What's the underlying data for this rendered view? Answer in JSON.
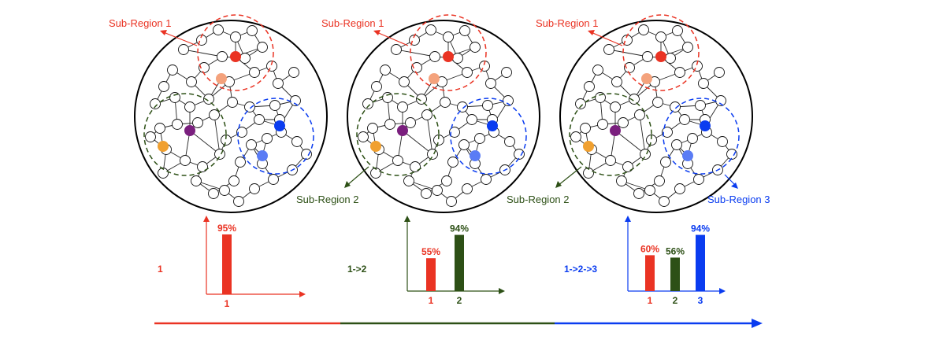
{
  "colors": {
    "red": "#ea3323",
    "green": "#2d5016",
    "blue": "#0a3cf0",
    "salmon": "#f4a27c",
    "purple": "#7a1f7e",
    "orange": "#f0a030",
    "lightblue": "#5a7cf5"
  },
  "panels": [
    {
      "region_labels": [
        "Sub-Region 1"
      ],
      "sequence": "1",
      "chart": {
        "type": "bar",
        "categories": [
          "1"
        ],
        "values": [
          95
        ],
        "value_labels": [
          "95%"
        ],
        "colors": [
          "#ea3323"
        ],
        "axis_color": "#ea3323"
      }
    },
    {
      "region_labels": [
        "Sub-Region 1",
        "Sub-Region 2"
      ],
      "sequence": "1->2",
      "chart": {
        "type": "bar",
        "categories": [
          "1",
          "2"
        ],
        "values": [
          55,
          94
        ],
        "value_labels": [
          "55%",
          "94%"
        ],
        "colors": [
          "#ea3323",
          "#2d5016"
        ],
        "axis_color": "#2d5016"
      }
    },
    {
      "region_labels": [
        "Sub-Region 1",
        "Sub-Region 2",
        "Sub-Region 3"
      ],
      "sequence": "1->2->3",
      "chart": {
        "type": "bar",
        "categories": [
          "1",
          "2",
          "3"
        ],
        "values": [
          60,
          56,
          94
        ],
        "value_labels": [
          "60%",
          "56%",
          "94%"
        ],
        "colors": [
          "#ea3323",
          "#2d5016",
          "#0a3cf0"
        ],
        "axis_color": "#0a3cf0"
      }
    }
  ]
}
